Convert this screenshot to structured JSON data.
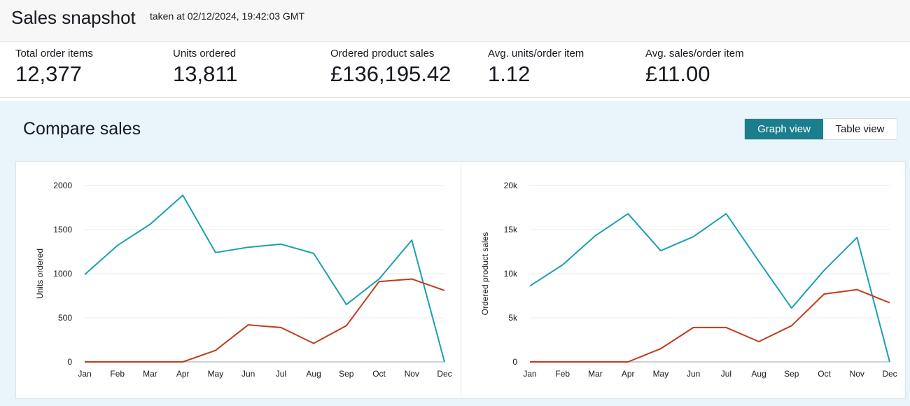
{
  "header": {
    "title": "Sales snapshot",
    "timestamp": "taken at 02/12/2024, 19:42:03 GMT"
  },
  "metrics": [
    {
      "label": "Total order items",
      "value": "12,377"
    },
    {
      "label": "Units ordered",
      "value": "13,811"
    },
    {
      "label": "Ordered product sales",
      "value": "£136,195.42"
    },
    {
      "label": "Avg. units/order item",
      "value": "1.12"
    },
    {
      "label": "Avg. sales/order item",
      "value": "£11.00"
    }
  ],
  "compare": {
    "title": "Compare sales",
    "view_toggle": {
      "graph_label": "Graph view",
      "table_label": "Table view",
      "selected": "Graph view"
    }
  },
  "colors": {
    "series_teal": "#1aa0b0",
    "series_red": "#c23b1b",
    "toggle_active": "#1b7e8e",
    "panel_bg": "#eaf4fb"
  },
  "chart_data": [
    {
      "type": "line",
      "title": "",
      "xlabel": "",
      "ylabel": "Units ordered",
      "categories": [
        "Jan",
        "Feb",
        "Mar",
        "Apr",
        "May",
        "Jun",
        "Jul",
        "Aug",
        "Sep",
        "Oct",
        "Nov",
        "Dec"
      ],
      "ylim": [
        0,
        2000
      ],
      "yticks": [
        0,
        500,
        1000,
        1500,
        2000
      ],
      "ytick_labels": [
        "0",
        "500",
        "1000",
        "1500",
        "2000"
      ],
      "grid": true,
      "series": [
        {
          "color": "#1aa0b0",
          "values": [
            990,
            1320,
            1560,
            1890,
            1240,
            1300,
            1335,
            1230,
            650,
            940,
            1380,
            0
          ]
        },
        {
          "color": "#c23b1b",
          "values": [
            0,
            0,
            0,
            0,
            130,
            420,
            390,
            210,
            410,
            910,
            940,
            810
          ]
        }
      ]
    },
    {
      "type": "line",
      "title": "",
      "xlabel": "",
      "ylabel": "Ordered product sales",
      "categories": [
        "Jan",
        "Feb",
        "Mar",
        "Apr",
        "May",
        "Jun",
        "Jul",
        "Aug",
        "Sep",
        "Oct",
        "Nov",
        "Dec"
      ],
      "ylim": [
        0,
        20000
      ],
      "yticks": [
        0,
        5000,
        10000,
        15000,
        20000
      ],
      "ytick_labels": [
        "0",
        "5k",
        "10k",
        "15k",
        "20k"
      ],
      "grid": true,
      "series": [
        {
          "color": "#1aa0b0",
          "values": [
            8600,
            11000,
            14300,
            16800,
            12600,
            14200,
            16800,
            11400,
            6100,
            10400,
            14100,
            0
          ]
        },
        {
          "color": "#c23b1b",
          "values": [
            0,
            0,
            0,
            0,
            1500,
            3900,
            3900,
            2300,
            4100,
            7700,
            8200,
            6700
          ]
        }
      ]
    }
  ]
}
